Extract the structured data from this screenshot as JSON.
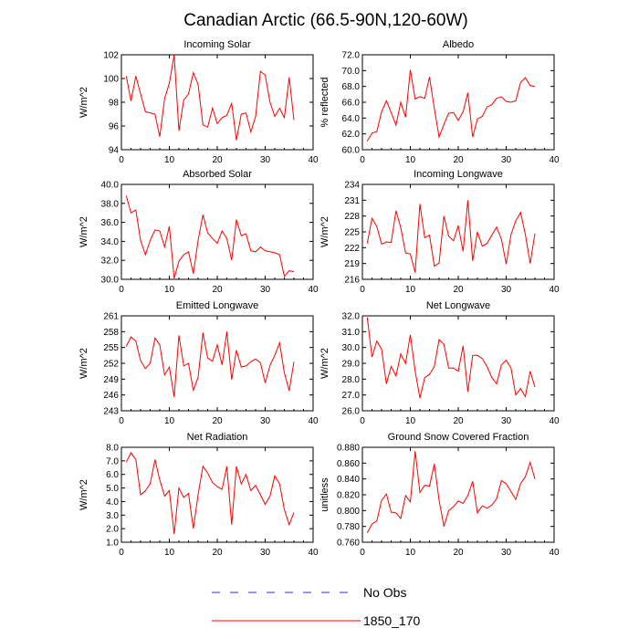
{
  "title": "Canadian Arctic (66.5-90N,120-60W)",
  "colors": {
    "model": "#ff0000",
    "obs": "#3030c0",
    "frame": "#000000"
  },
  "legend": {
    "obs_label": "No Obs",
    "model_label": "1850_170"
  },
  "chart_data": [
    {
      "type": "line",
      "title": "Incoming Solar",
      "ylabel": "W/m^2",
      "xlim": [
        0,
        40
      ],
      "xticks": [
        "0",
        "10",
        "20",
        "30",
        "40"
      ],
      "ylim": [
        94,
        102
      ],
      "yticks": [
        "94",
        "96",
        "98",
        "100",
        "102"
      ],
      "series": [
        {
          "name": "1850_170",
          "x": [
            1,
            2,
            3,
            4,
            5,
            6,
            7,
            8,
            9,
            10,
            11,
            12,
            13,
            14,
            15,
            16,
            17,
            18,
            19,
            20,
            21,
            22,
            23,
            24,
            25,
            26,
            27,
            28,
            29,
            30,
            31,
            32,
            33,
            34,
            35,
            36
          ],
          "values": [
            100.2,
            98.1,
            100.2,
            98.7,
            97.2,
            97.1,
            97.0,
            95.1,
            98.3,
            99.6,
            102.0,
            95.6,
            98.2,
            98.7,
            100.5,
            99.5,
            96.1,
            95.9,
            97.5,
            96.2,
            96.7,
            96.9,
            97.9,
            94.8,
            97.0,
            97.1,
            95.5,
            96.8,
            100.6,
            100.3,
            98.0,
            96.8,
            97.5,
            96.7,
            100.1,
            96.5
          ]
        }
      ]
    },
    {
      "type": "line",
      "title": "Albedo",
      "ylabel": "% reflected",
      "xlim": [
        0,
        40
      ],
      "xticks": [
        "0",
        "10",
        "20",
        "30",
        "40"
      ],
      "ylim": [
        60,
        72
      ],
      "yticks": [
        "60.0",
        "62.0",
        "64.0",
        "66.0",
        "68.0",
        "70.0",
        "72.0"
      ],
      "series": [
        {
          "name": "1850_170",
          "x": [
            1,
            2,
            3,
            4,
            5,
            6,
            7,
            8,
            9,
            10,
            11,
            12,
            13,
            14,
            15,
            16,
            17,
            18,
            19,
            20,
            21,
            22,
            23,
            24,
            25,
            26,
            27,
            28,
            29,
            30,
            31,
            32,
            33,
            34,
            35,
            36
          ],
          "values": [
            61.1,
            62.1,
            62.3,
            64.8,
            66.2,
            64.7,
            63.1,
            66.0,
            64.1,
            70.1,
            66.4,
            66.7,
            66.5,
            69.2,
            65.2,
            61.6,
            63.2,
            64.6,
            64.7,
            63.7,
            64.8,
            67.2,
            61.6,
            63.9,
            64.2,
            65.4,
            65.7,
            66.5,
            66.7,
            66.1,
            66.0,
            66.2,
            68.5,
            69.1,
            68.1,
            68.0
          ]
        }
      ]
    },
    {
      "type": "line",
      "title": "Absorbed Solar",
      "ylabel": "W/m^2",
      "xlim": [
        0,
        40
      ],
      "xticks": [
        "0",
        "10",
        "20",
        "30",
        "40"
      ],
      "ylim": [
        30,
        40
      ],
      "yticks": [
        "30.0",
        "32.0",
        "34.0",
        "36.0",
        "38.0",
        "40.0"
      ],
      "series": [
        {
          "name": "1850_170",
          "x": [
            1,
            2,
            3,
            4,
            5,
            6,
            7,
            8,
            9,
            10,
            11,
            12,
            13,
            14,
            15,
            16,
            17,
            18,
            19,
            20,
            21,
            22,
            23,
            24,
            25,
            26,
            27,
            28,
            29,
            30,
            31,
            32,
            33,
            34,
            35,
            36
          ],
          "values": [
            38.8,
            37.0,
            37.3,
            34.1,
            32.6,
            34.1,
            35.2,
            35.1,
            33.4,
            35.6,
            30.1,
            31.9,
            32.6,
            32.9,
            30.6,
            34.1,
            36.8,
            34.9,
            34.3,
            33.8,
            35.1,
            34.3,
            32.0,
            36.3,
            34.6,
            34.8,
            33.0,
            32.9,
            33.4,
            33.0,
            32.9,
            32.8,
            32.6,
            30.3,
            30.9,
            30.8
          ]
        }
      ]
    },
    {
      "type": "line",
      "title": "Incoming Longwave",
      "ylabel": "W/m^2",
      "xlim": [
        0,
        40
      ],
      "xticks": [
        "0",
        "10",
        "20",
        "30",
        "40"
      ],
      "ylim": [
        216,
        234
      ],
      "yticks": [
        "216",
        "219",
        "222",
        "225",
        "228",
        "231",
        "234"
      ],
      "series": [
        {
          "name": "1850_170",
          "x": [
            1,
            2,
            3,
            4,
            5,
            6,
            7,
            8,
            9,
            10,
            11,
            12,
            13,
            14,
            15,
            16,
            17,
            18,
            19,
            20,
            21,
            22,
            23,
            24,
            25,
            26,
            27,
            28,
            29,
            30,
            31,
            32,
            33,
            34,
            35,
            36
          ],
          "values": [
            222.8,
            227.6,
            226.0,
            222.7,
            223.1,
            223.0,
            229.0,
            225.8,
            221.0,
            220.8,
            217.3,
            230.3,
            223.9,
            224.4,
            218.5,
            219.1,
            228.0,
            224.2,
            223.3,
            226.2,
            221.3,
            231.0,
            219.5,
            225.0,
            222.3,
            222.8,
            224.4,
            225.9,
            223.6,
            218.9,
            224.5,
            227.1,
            228.7,
            224.5,
            219.0,
            224.7
          ]
        }
      ]
    },
    {
      "type": "line",
      "title": "Emitted Longwave",
      "ylabel": "W/m^2",
      "xlim": [
        0,
        40
      ],
      "xticks": [
        "0",
        "10",
        "20",
        "30",
        "40"
      ],
      "ylim": [
        243,
        261
      ],
      "yticks": [
        "243",
        "246",
        "249",
        "252",
        "255",
        "258",
        "261"
      ],
      "series": [
        {
          "name": "1850_170",
          "x": [
            1,
            2,
            3,
            4,
            5,
            6,
            7,
            8,
            9,
            10,
            11,
            12,
            13,
            14,
            15,
            16,
            17,
            18,
            19,
            20,
            21,
            22,
            23,
            24,
            25,
            26,
            27,
            28,
            29,
            30,
            31,
            32,
            33,
            34,
            35,
            36
          ],
          "values": [
            255.2,
            257.0,
            256.2,
            252.5,
            251.0,
            252.0,
            256.8,
            255.5,
            249.8,
            251.3,
            245.6,
            257.3,
            251.5,
            252.0,
            246.9,
            249.3,
            257.8,
            253.0,
            252.4,
            255.5,
            251.7,
            258.0,
            248.9,
            254.5,
            251.3,
            251.5,
            252.3,
            252.8,
            252.1,
            248.3,
            251.6,
            253.5,
            255.9,
            250.2,
            246.8,
            252.3
          ]
        }
      ]
    },
    {
      "type": "line",
      "title": "Net Longwave",
      "ylabel": "W/m^2",
      "xlim": [
        0,
        40
      ],
      "xticks": [
        "0",
        "10",
        "20",
        "30",
        "40"
      ],
      "ylim": [
        26,
        32
      ],
      "yticks": [
        "26.0",
        "27.0",
        "28.0",
        "29.0",
        "30.0",
        "31.0",
        "32.0"
      ],
      "series": [
        {
          "name": "1850_170",
          "x": [
            1,
            2,
            3,
            4,
            5,
            6,
            7,
            8,
            9,
            10,
            11,
            12,
            13,
            14,
            15,
            16,
            17,
            18,
            19,
            20,
            21,
            22,
            23,
            24,
            25,
            26,
            27,
            28,
            29,
            30,
            31,
            32,
            33,
            34,
            35,
            36
          ],
          "values": [
            31.9,
            29.4,
            30.4,
            29.9,
            27.7,
            28.8,
            28.2,
            29.6,
            29.0,
            30.8,
            28.5,
            26.8,
            28.1,
            28.3,
            28.8,
            30.5,
            30.2,
            28.7,
            28.7,
            28.5,
            30.1,
            27.2,
            29.5,
            29.5,
            29.3,
            28.8,
            28.1,
            27.7,
            28.9,
            29.2,
            28.7,
            27.0,
            27.4,
            26.9,
            28.5,
            27.5
          ]
        }
      ]
    },
    {
      "type": "line",
      "title": "Net Radiation",
      "ylabel": "W/m^2",
      "xlim": [
        0,
        40
      ],
      "xticks": [
        "0",
        "10",
        "20",
        "30",
        "40"
      ],
      "ylim": [
        1,
        8
      ],
      "yticks": [
        "1.0",
        "2.0",
        "3.0",
        "4.0",
        "5.0",
        "6.0",
        "7.0",
        "8.0"
      ],
      "series": [
        {
          "name": "1850_170",
          "x": [
            1,
            2,
            3,
            4,
            5,
            6,
            7,
            8,
            9,
            10,
            11,
            12,
            13,
            14,
            15,
            16,
            17,
            18,
            19,
            20,
            21,
            22,
            23,
            24,
            25,
            26,
            27,
            28,
            29,
            30,
            31,
            32,
            33,
            34,
            35,
            36
          ],
          "values": [
            6.9,
            7.6,
            7.1,
            4.5,
            4.8,
            5.3,
            7.1,
            5.6,
            4.4,
            4.8,
            1.6,
            5.0,
            4.3,
            4.6,
            2.0,
            4.5,
            6.6,
            6.1,
            5.4,
            5.1,
            4.9,
            6.6,
            2.3,
            6.6,
            5.3,
            6.0,
            4.8,
            5.2,
            4.5,
            3.8,
            4.4,
            5.9,
            5.3,
            3.4,
            2.3,
            3.2
          ]
        }
      ]
    },
    {
      "type": "line",
      "title": "Ground Snow Covered Fraction",
      "ylabel": "unitless",
      "xlim": [
        0,
        40
      ],
      "xticks": [
        "0",
        "10",
        "20",
        "30",
        "40"
      ],
      "ylim": [
        0.76,
        0.88
      ],
      "yticks": [
        "0.760",
        "0.780",
        "0.800",
        "0.820",
        "0.840",
        "0.860",
        "0.880"
      ],
      "series": [
        {
          "name": "1850_170",
          "x": [
            1,
            2,
            3,
            4,
            5,
            6,
            7,
            8,
            9,
            10,
            11,
            12,
            13,
            14,
            15,
            16,
            17,
            18,
            19,
            20,
            21,
            22,
            23,
            24,
            25,
            26,
            27,
            28,
            29,
            30,
            31,
            32,
            33,
            34,
            35,
            36
          ],
          "values": [
            0.772,
            0.783,
            0.787,
            0.813,
            0.821,
            0.798,
            0.797,
            0.79,
            0.819,
            0.811,
            0.875,
            0.823,
            0.832,
            0.831,
            0.859,
            0.813,
            0.78,
            0.8,
            0.805,
            0.812,
            0.809,
            0.819,
            0.837,
            0.797,
            0.806,
            0.803,
            0.807,
            0.815,
            0.838,
            0.834,
            0.824,
            0.814,
            0.834,
            0.843,
            0.861,
            0.84
          ]
        }
      ]
    }
  ]
}
